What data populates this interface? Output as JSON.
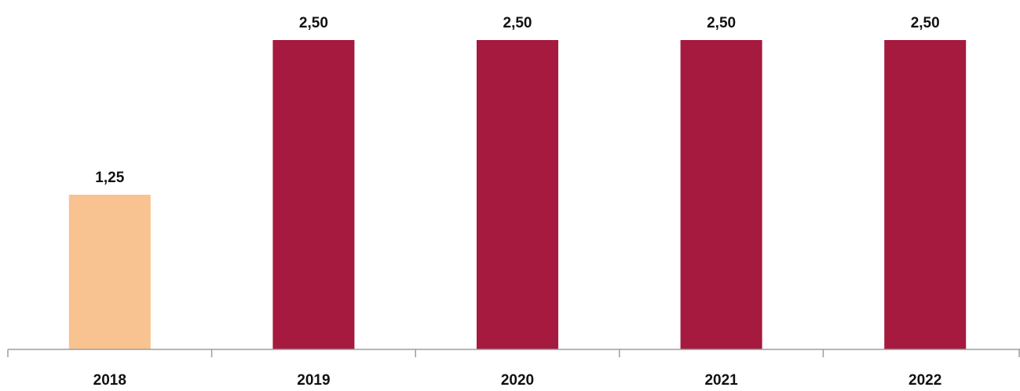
{
  "chart_data": {
    "type": "bar",
    "title": "",
    "xlabel": "",
    "ylabel": "",
    "categories": [
      "2018",
      "2019",
      "2020",
      "2021",
      "2022"
    ],
    "values": [
      1.25,
      2.5,
      2.5,
      2.5,
      2.5
    ],
    "value_labels": [
      "1,25",
      "2,50",
      "2,50",
      "2,50",
      "2,50"
    ],
    "bar_colors": [
      "#F9C291",
      "#A51A3E",
      "#A51A3E",
      "#A51A3E",
      "#A51A3E"
    ],
    "axis_color": "#9E9E9E",
    "ylim": [
      0,
      2.5
    ],
    "grid": false,
    "legend": "none"
  }
}
